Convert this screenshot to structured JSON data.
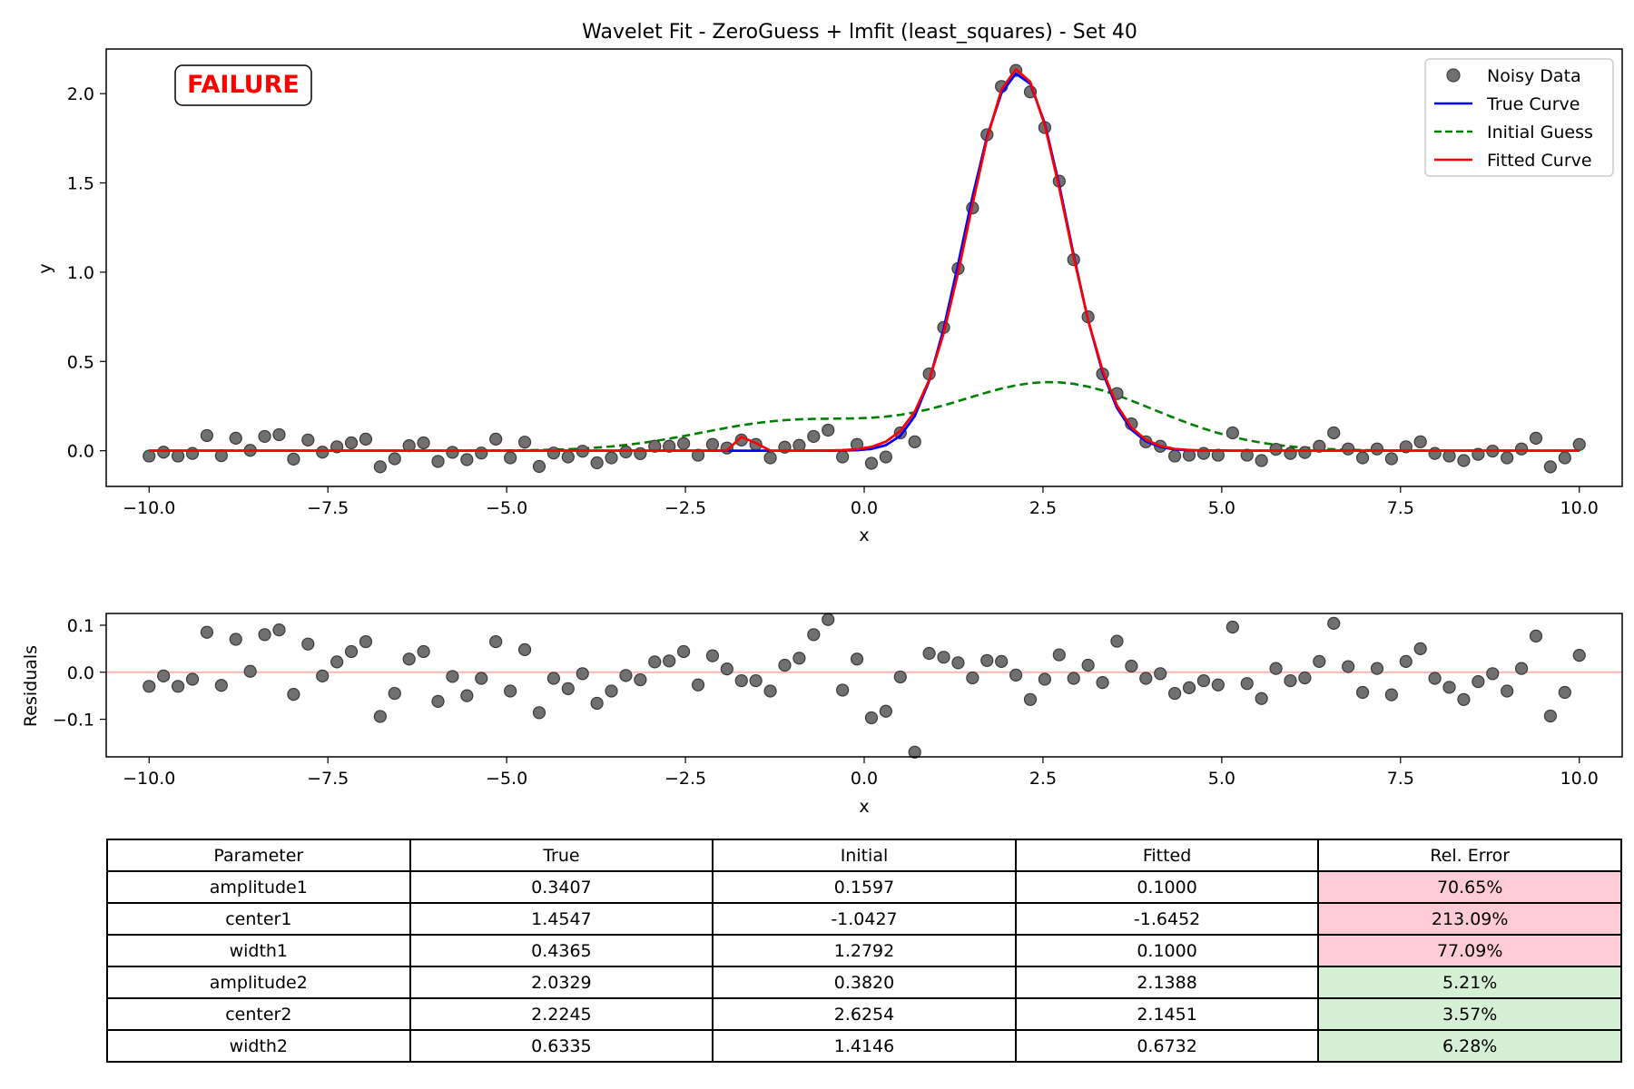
{
  "title": "Wavelet Fit - ZeroGuess + lmfit (least_squares) - Set 40",
  "status_badge": "FAILURE",
  "colors": {
    "true_curve": "#0000ff",
    "initial_guess": "#008000",
    "fitted_curve": "#ff0000",
    "data_points": "#707070",
    "failure_text": "#ff0000",
    "residual_zero_line": "#ffb3b3",
    "error_bad_bg": "#ffccd5",
    "error_good_bg": "#d6f0d6"
  },
  "legend": {
    "noisy_data": "Noisy Data",
    "true_curve": "True Curve",
    "initial_guess": "Initial Guess",
    "fitted_curve": "Fitted Curve",
    "placement": "top-right"
  },
  "chart_data": [
    {
      "type": "line",
      "title": "Wavelet Fit - ZeroGuess + lmfit (least_squares) - Set 40",
      "xlabel": "x",
      "ylabel": "y",
      "xlim": [
        -10.6,
        10.6
      ],
      "ylim": [
        -0.2,
        2.25
      ],
      "xticks": [
        -10.0,
        -7.5,
        -5.0,
        -2.5,
        0.0,
        2.5,
        5.0,
        7.5,
        10.0
      ],
      "yticks": [
        0.0,
        0.5,
        1.0,
        1.5,
        2.0
      ],
      "grid": false,
      "legend_placement": "top-right",
      "model": "sum of two gaussians: amplitude * exp(-(x-center)^2 / (2*width^2))",
      "series": [
        {
          "name": "True Curve",
          "kind": "line",
          "params": {
            "amplitude1": 0.3407,
            "center1": 1.4547,
            "width1": 0.4365,
            "amplitude2": 2.0329,
            "center2": 2.2245,
            "width2": 0.6335
          }
        },
        {
          "name": "Initial Guess",
          "kind": "line",
          "params": {
            "amplitude1": 0.1597,
            "center1": -1.0427,
            "width1": 1.2792,
            "amplitude2": 0.382,
            "center2": 2.6254,
            "width2": 1.4146
          }
        },
        {
          "name": "Fitted Curve",
          "kind": "line",
          "params": {
            "amplitude1": 0.1,
            "center1": -1.6452,
            "width1": 0.1,
            "amplitude2": 2.1388,
            "center2": 2.1451,
            "width2": 0.6732
          }
        },
        {
          "name": "Noisy Data",
          "kind": "scatter",
          "x": [
            -10.0,
            -9.798,
            -9.596,
            -9.394,
            -9.192,
            -8.99,
            -8.788,
            -8.586,
            -8.384,
            -8.182,
            -7.98,
            -7.778,
            -7.576,
            -7.374,
            -7.172,
            -6.97,
            -6.768,
            -6.566,
            -6.364,
            -6.162,
            -5.96,
            -5.758,
            -5.556,
            -5.354,
            -5.152,
            -4.949,
            -4.747,
            -4.545,
            -4.343,
            -4.141,
            -3.939,
            -3.737,
            -3.535,
            -3.333,
            -3.131,
            -2.929,
            -2.727,
            -2.525,
            -2.323,
            -2.121,
            -1.919,
            -1.717,
            -1.515,
            -1.313,
            -1.111,
            -0.909,
            -0.707,
            -0.505,
            -0.303,
            -0.101,
            0.101,
            0.303,
            0.505,
            0.707,
            0.909,
            1.111,
            1.313,
            1.515,
            1.717,
            1.919,
            2.121,
            2.323,
            2.525,
            2.727,
            2.929,
            3.131,
            3.333,
            3.535,
            3.737,
            3.939,
            4.141,
            4.343,
            4.545,
            4.747,
            4.949,
            5.152,
            5.354,
            5.556,
            5.758,
            5.96,
            6.162,
            6.364,
            6.566,
            6.768,
            6.97,
            7.172,
            7.374,
            7.576,
            7.778,
            7.98,
            8.182,
            8.384,
            8.586,
            8.788,
            8.99,
            9.192,
            9.394,
            9.596,
            9.798,
            10.0
          ],
          "y": [
            -0.03,
            -0.008,
            -0.03,
            -0.015,
            0.085,
            -0.028,
            0.07,
            0.002,
            0.08,
            0.09,
            -0.047,
            0.06,
            -0.008,
            0.022,
            0.044,
            0.065,
            -0.09,
            -0.045,
            0.028,
            0.044,
            -0.06,
            -0.009,
            -0.05,
            -0.013,
            0.065,
            -0.04,
            0.048,
            -0.088,
            -0.013,
            -0.035,
            -0.003,
            -0.068,
            -0.04,
            -0.007,
            -0.016,
            0.025,
            0.025,
            0.04,
            -0.025,
            0.035,
            0.015,
            0.06,
            0.035,
            -0.04,
            0.02,
            0.03,
            0.08,
            0.115,
            -0.035,
            0.035,
            -0.07,
            -0.035,
            0.1,
            0.05,
            0.43,
            0.69,
            1.02,
            1.36,
            1.77,
            2.04,
            2.13,
            2.01,
            1.81,
            1.51,
            1.07,
            0.75,
            0.43,
            0.32,
            0.15,
            0.05,
            0.025,
            -0.03,
            -0.025,
            -0.015,
            -0.025,
            0.1,
            -0.025,
            -0.055,
            0.008,
            -0.015,
            -0.01,
            0.025,
            0.1,
            0.01,
            -0.04,
            0.01,
            -0.045,
            0.022,
            0.05,
            -0.015,
            -0.03,
            -0.055,
            -0.02,
            -0.002,
            -0.04,
            0.01,
            0.07,
            -0.09,
            -0.04,
            0.035
          ]
        }
      ]
    },
    {
      "type": "scatter",
      "xlabel": "x",
      "ylabel": "Residuals",
      "xlim": [
        -10.6,
        10.6
      ],
      "ylim": [
        -0.18,
        0.125
      ],
      "xticks": [
        -10.0,
        -7.5,
        -5.0,
        -2.5,
        0.0,
        2.5,
        5.0,
        7.5,
        10.0
      ],
      "yticks": [
        -0.1,
        0.0,
        0.1
      ],
      "grid": false,
      "zero_line": true,
      "series": [
        {
          "name": "Residuals",
          "x": [
            -10.0,
            -9.798,
            -9.596,
            -9.394,
            -9.192,
            -8.99,
            -8.788,
            -8.586,
            -8.384,
            -8.182,
            -7.98,
            -7.778,
            -7.576,
            -7.374,
            -7.172,
            -6.97,
            -6.768,
            -6.566,
            -6.364,
            -6.162,
            -5.96,
            -5.758,
            -5.556,
            -5.354,
            -5.152,
            -4.949,
            -4.747,
            -4.545,
            -4.343,
            -4.141,
            -3.939,
            -3.737,
            -3.535,
            -3.333,
            -3.131,
            -2.929,
            -2.727,
            -2.525,
            -2.323,
            -2.121,
            -1.919,
            -1.717,
            -1.515,
            -1.313,
            -1.111,
            -0.909,
            -0.707,
            -0.505,
            -0.303,
            -0.101,
            0.101,
            0.303,
            0.505,
            0.707,
            0.909,
            1.111,
            1.313,
            1.515,
            1.717,
            1.919,
            2.121,
            2.323,
            2.525,
            2.727,
            2.929,
            3.131,
            3.333,
            3.535,
            3.737,
            3.939,
            4.141,
            4.343,
            4.545,
            4.747,
            4.949,
            5.152,
            5.354,
            5.556,
            5.758,
            5.96,
            6.162,
            6.364,
            6.566,
            6.768,
            6.97,
            7.172,
            7.374,
            7.576,
            7.778,
            7.98,
            8.182,
            8.384,
            8.586,
            8.788,
            8.99,
            9.192,
            9.394,
            9.596,
            9.798,
            10.0
          ],
          "y": [
            -0.03,
            -0.008,
            -0.03,
            -0.015,
            0.085,
            -0.028,
            0.07,
            0.002,
            0.08,
            0.09,
            -0.047,
            0.06,
            -0.008,
            0.022,
            0.044,
            0.065,
            -0.094,
            -0.045,
            0.028,
            0.044,
            -0.062,
            -0.009,
            -0.05,
            -0.013,
            0.065,
            -0.04,
            0.048,
            -0.086,
            -0.013,
            -0.035,
            -0.003,
            -0.066,
            -0.04,
            -0.007,
            -0.016,
            0.022,
            0.024,
            0.044,
            -0.027,
            0.035,
            0.007,
            -0.018,
            -0.018,
            -0.04,
            0.015,
            0.03,
            0.08,
            0.112,
            -0.038,
            0.028,
            -0.097,
            -0.083,
            -0.01,
            -0.17,
            0.04,
            0.032,
            0.02,
            -0.012,
            0.025,
            0.023,
            -0.006,
            -0.058,
            -0.015,
            0.037,
            -0.013,
            0.015,
            -0.022,
            0.066,
            0.013,
            -0.013,
            -0.003,
            -0.045,
            -0.033,
            -0.018,
            -0.027,
            0.096,
            -0.024,
            -0.056,
            0.008,
            -0.018,
            -0.012,
            0.023,
            0.104,
            0.012,
            -0.043,
            0.008,
            -0.048,
            0.023,
            0.05,
            -0.013,
            -0.032,
            -0.058,
            -0.02,
            -0.003,
            -0.04,
            0.008,
            0.077,
            -0.093,
            -0.043,
            0.036
          ]
        }
      ]
    },
    {
      "type": "table",
      "columns": [
        "Parameter",
        "True",
        "Initial",
        "Fitted",
        "Rel. Error"
      ],
      "rows": [
        {
          "cells": [
            "amplitude1",
            "0.3407",
            "0.1597",
            "0.1000",
            "70.65%"
          ],
          "status": "bad"
        },
        {
          "cells": [
            "center1",
            "1.4547",
            "-1.0427",
            "-1.6452",
            "213.09%"
          ],
          "status": "bad"
        },
        {
          "cells": [
            "width1",
            "0.4365",
            "1.2792",
            "0.1000",
            "77.09%"
          ],
          "status": "bad"
        },
        {
          "cells": [
            "amplitude2",
            "2.0329",
            "0.3820",
            "2.1388",
            "5.21%"
          ],
          "status": "good"
        },
        {
          "cells": [
            "center2",
            "2.2245",
            "2.6254",
            "2.1451",
            "3.57%"
          ],
          "status": "good"
        },
        {
          "cells": [
            "width2",
            "0.6335",
            "1.4146",
            "0.6732",
            "6.28%"
          ],
          "status": "good"
        }
      ]
    }
  ]
}
